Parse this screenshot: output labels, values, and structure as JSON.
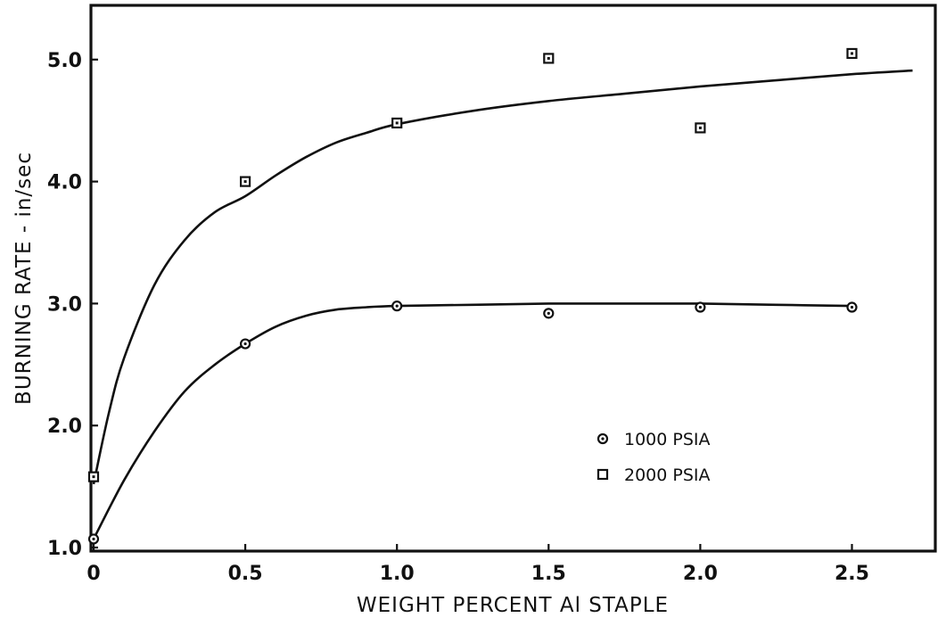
{
  "chart_data": {
    "type": "scatter",
    "title": "",
    "xlabel": "WEIGHT PERCENT Al STAPLE",
    "ylabel": "BURNING RATE - in/sec",
    "xlim": [
      0,
      2.75
    ],
    "ylim": [
      1.0,
      5.5
    ],
    "x_ticks": [
      "0",
      "0.5",
      "1.0",
      "1.5",
      "2.0",
      "2.5"
    ],
    "y_ticks": [
      "1.0",
      "2.0",
      "3.0",
      "4.0",
      "5.0"
    ],
    "grid": false,
    "legend_position": "lower-right",
    "series": [
      {
        "name": "1000 PSIA",
        "marker": "circle",
        "points": [
          [
            0,
            1.07
          ],
          [
            0.5,
            2.67
          ],
          [
            1.0,
            2.98
          ],
          [
            1.5,
            2.92
          ],
          [
            2.0,
            2.97
          ],
          [
            2.5,
            2.97
          ]
        ],
        "fit_curve": [
          [
            0,
            1.07
          ],
          [
            0.1,
            1.55
          ],
          [
            0.2,
            1.95
          ],
          [
            0.3,
            2.28
          ],
          [
            0.4,
            2.5
          ],
          [
            0.5,
            2.67
          ],
          [
            0.6,
            2.81
          ],
          [
            0.7,
            2.9
          ],
          [
            0.8,
            2.95
          ],
          [
            0.9,
            2.97
          ],
          [
            1.0,
            2.98
          ],
          [
            1.25,
            2.99
          ],
          [
            1.5,
            3.0
          ],
          [
            1.75,
            3.0
          ],
          [
            2.0,
            3.0
          ],
          [
            2.25,
            2.99
          ],
          [
            2.5,
            2.98
          ]
        ]
      },
      {
        "name": "2000 PSIA",
        "marker": "square",
        "points": [
          [
            0,
            1.58
          ],
          [
            0.5,
            4.0
          ],
          [
            1.0,
            4.48
          ],
          [
            1.5,
            5.01
          ],
          [
            2.0,
            4.44
          ],
          [
            2.5,
            5.05
          ]
        ],
        "fit_curve": [
          [
            0,
            1.52
          ],
          [
            0.05,
            2.1
          ],
          [
            0.1,
            2.55
          ],
          [
            0.2,
            3.15
          ],
          [
            0.3,
            3.52
          ],
          [
            0.4,
            3.75
          ],
          [
            0.5,
            3.88
          ],
          [
            0.6,
            4.05
          ],
          [
            0.7,
            4.2
          ],
          [
            0.8,
            4.32
          ],
          [
            0.9,
            4.4
          ],
          [
            1.0,
            4.47
          ],
          [
            1.25,
            4.58
          ],
          [
            1.5,
            4.66
          ],
          [
            1.75,
            4.72
          ],
          [
            2.0,
            4.78
          ],
          [
            2.25,
            4.83
          ],
          [
            2.5,
            4.88
          ],
          [
            2.7,
            4.91
          ]
        ]
      }
    ]
  }
}
